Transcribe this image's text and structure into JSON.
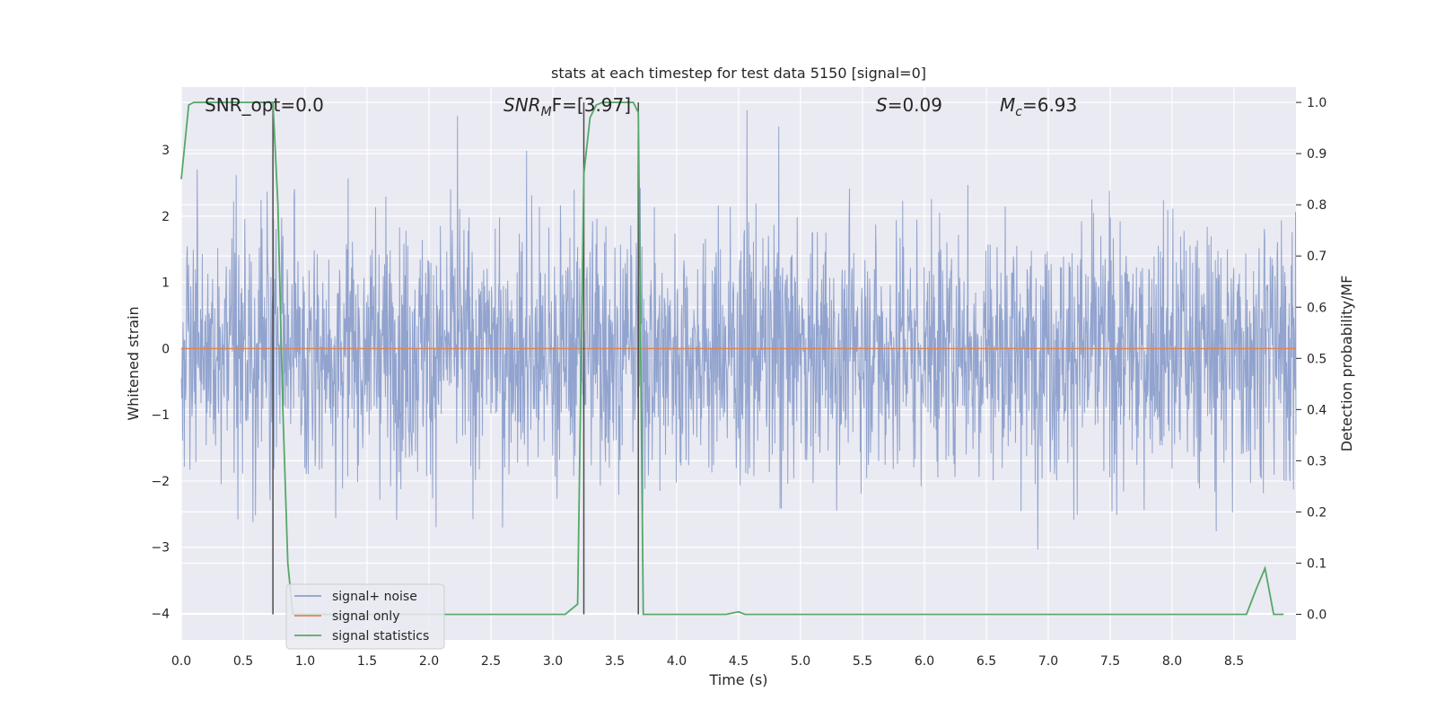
{
  "chart_data": {
    "type": "line",
    "title": "stats at each timestep for test data 5150 [signal=0]",
    "xlabel": "Time (s)",
    "ylabel_left": "Whitened strain",
    "ylabel_right": "Detection probability/MF",
    "xlim": [
      0.0,
      9.0
    ],
    "ylim_left": [
      -4.4,
      3.95
    ],
    "ylim_right": [
      -0.05,
      1.03
    ],
    "xticks": [
      "0.0",
      "0.5",
      "1.0",
      "1.5",
      "2.0",
      "2.5",
      "3.0",
      "3.5",
      "4.0",
      "4.5",
      "5.0",
      "5.5",
      "6.0",
      "6.5",
      "7.0",
      "7.5",
      "8.0",
      "8.5"
    ],
    "yticks_left": [
      "3",
      "2",
      "1",
      "0",
      "−1",
      "−2",
      "−3",
      "−4"
    ],
    "yticks_right": [
      "1.0",
      "0.9",
      "0.8",
      "0.7",
      "0.6",
      "0.5",
      "0.4",
      "0.3",
      "0.2",
      "0.1",
      "0.0"
    ],
    "grid": true,
    "legend_position": "lower-left",
    "colors": {
      "noise": "#8c9fcb",
      "signal": "#dd8452",
      "stats": "#55a868",
      "marker": "#4d4d4d",
      "background": "#eaeaf2"
    },
    "series": [
      {
        "name": "signal+ noise",
        "axis": "left",
        "description_values": "whitened strain noise, bulk within ±1.3, spikes to about ±3.5",
        "envelope_typical": 1.3,
        "envelope_peak": 3.6
      },
      {
        "name": "signal only",
        "axis": "left",
        "x": [
          0.0,
          9.0
        ],
        "y": [
          0.0,
          0.0
        ]
      },
      {
        "name": "signal statistics",
        "axis": "right",
        "x": [
          0.0,
          0.06,
          0.1,
          0.2,
          0.3,
          0.4,
          0.5,
          0.6,
          0.7,
          0.74,
          0.78,
          0.82,
          0.86,
          0.9,
          1.0,
          1.5,
          2.0,
          2.5,
          3.0,
          3.1,
          3.2,
          3.25,
          3.3,
          3.35,
          3.4,
          3.5,
          3.6,
          3.65,
          3.69,
          3.73,
          3.8,
          4.0,
          4.4,
          4.5,
          4.55,
          4.7,
          5.0,
          6.0,
          7.0,
          8.0,
          8.6,
          8.68,
          8.75,
          8.82,
          8.9
        ],
        "y": [
          0.85,
          0.995,
          1.0,
          1.0,
          1.0,
          1.0,
          1.0,
          1.0,
          1.0,
          1.0,
          0.8,
          0.4,
          0.1,
          0.0,
          0.0,
          0.0,
          0.0,
          0.0,
          0.0,
          0.0,
          0.02,
          0.86,
          0.97,
          0.995,
          1.0,
          1.0,
          1.0,
          1.0,
          0.98,
          0.0,
          0.0,
          0.0,
          0.0,
          0.005,
          0.0,
          0.0,
          0.0,
          0.0,
          0.0,
          0.0,
          0.0,
          0.05,
          0.09,
          0.0,
          0.0
        ]
      }
    ],
    "vlines_x": [
      0.74,
      3.25,
      3.69
    ],
    "annotations": {
      "snr_opt": "SNR_opt=0.0",
      "snr_mf_main": "SNR",
      "snr_mf_sub": "M",
      "snr_mf_rest": "F=[3.97]",
      "s_main": "S",
      "s_rest": "=0.09",
      "mc_main": "M",
      "mc_sub": "c",
      "mc_rest": "=6.93"
    }
  }
}
